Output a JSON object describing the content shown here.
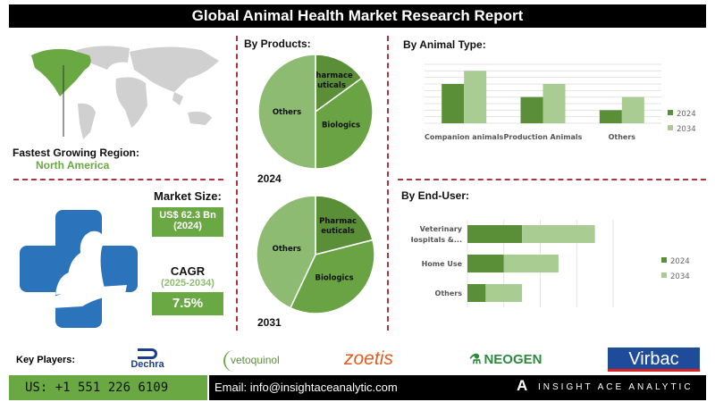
{
  "title": "Global Animal Health Market Research Report",
  "region": {
    "label": "Fastest Growing Region:",
    "value": "North America"
  },
  "market_size": {
    "label": "Market Size:",
    "value": "US$ 62.3 Bn",
    "year": "(2024)"
  },
  "cagr": {
    "label": "CAGR",
    "period": "(2025-2034)",
    "value": "7.5%"
  },
  "colors": {
    "dark": "#5a8f38",
    "mid": "#69a343",
    "light": "#a8cc92",
    "others": "#8dbb72",
    "divider": "#b0343f",
    "icon_blue": "#2b73bb"
  },
  "key_players": {
    "label": "Key Players:",
    "logos": [
      "Dechra",
      "vetoquinol",
      "zoetis",
      "NEOGEN",
      "Virbac"
    ]
  },
  "footer": {
    "phone": "US: +1 551 226 6109",
    "email": "Email: info@insightaceanalytic.com",
    "brand": "INSIGHT ACE ANALYTIC"
  },
  "chart_data": [
    {
      "type": "pie",
      "title": "By Products:",
      "caption": "2024",
      "labels": [
        "Pharmaceuticals",
        "Biologics",
        "Others"
      ],
      "display_labels": [
        "Pharmace\nuticals",
        "Biologics",
        "Others"
      ],
      "values": [
        15,
        35,
        50
      ]
    },
    {
      "type": "pie",
      "caption": "2031",
      "labels": [
        "Pharmaceuticals",
        "Biologics",
        "Others"
      ],
      "display_labels": [
        "Pharmac\neuticals",
        "Biologics",
        "Others"
      ],
      "values": [
        21,
        36,
        43
      ]
    },
    {
      "type": "bar",
      "title": "By Animal Type:",
      "categories": [
        "Companion animals",
        "Production Animals",
        "Others"
      ],
      "series": [
        {
          "name": "2024",
          "values": [
            6,
            4,
            2
          ]
        },
        {
          "name": "2034",
          "values": [
            8,
            6,
            4
          ]
        }
      ],
      "ylim": [
        0,
        9
      ],
      "grid": true,
      "legend": "right"
    },
    {
      "type": "bar",
      "orientation": "horizontal",
      "stacked": true,
      "title": "By End-User:",
      "categories": [
        "Veterinary Hospitals &...",
        "Home Use",
        "Others"
      ],
      "series": [
        {
          "name": "2024",
          "values": [
            1.5,
            1.0,
            0.5
          ]
        },
        {
          "name": "2034",
          "values": [
            2.0,
            1.5,
            1.0
          ]
        }
      ],
      "xlim": [
        0,
        4
      ],
      "grid": true,
      "legend": "right"
    }
  ]
}
